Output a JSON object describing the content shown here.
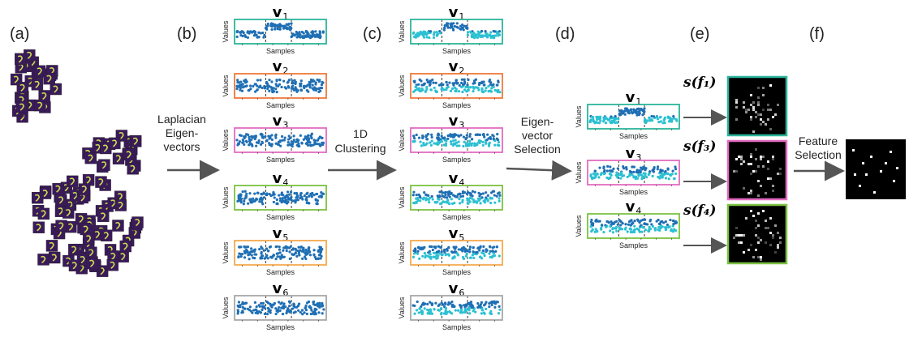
{
  "panels": {
    "a": "(a)",
    "b": "(b)",
    "c": "(c)",
    "d": "(d)",
    "e": "(e)",
    "f": "(f)"
  },
  "steps": {
    "laplacian": [
      "Laplacian",
      "Eigen-",
      "vectors"
    ],
    "clustering": [
      "1D",
      "Clustering"
    ],
    "selection": [
      "Eigen-",
      "vector",
      "Selection"
    ],
    "feature": [
      "Feature",
      "Selection"
    ]
  },
  "axis": {
    "x": "Samples",
    "y": "Values"
  },
  "vector_label": "v",
  "vectors_all": [
    {
      "sub": "1",
      "color": "#2bb59a"
    },
    {
      "sub": "2",
      "color": "#f0783a"
    },
    {
      "sub": "3",
      "color": "#e36bc0"
    },
    {
      "sub": "4",
      "color": "#7cc242"
    },
    {
      "sub": "5",
      "color": "#f5a94c"
    },
    {
      "sub": "6",
      "color": "#a8a8a8"
    }
  ],
  "vectors_selected": [
    {
      "sub": "1",
      "color": "#2bb59a",
      "score": "s(f₁)"
    },
    {
      "sub": "3",
      "color": "#e36bc0",
      "score": "s(f₃)"
    },
    {
      "sub": "4",
      "color": "#7cc242",
      "score": "s(f₄)"
    }
  ],
  "colors": {
    "cluster_a": "#1f6fb4",
    "cluster_b": "#2cc0d2",
    "arrow": "#555555",
    "digit_bg": "#3b1a5c",
    "digit_fg": "#c8e04a"
  }
}
